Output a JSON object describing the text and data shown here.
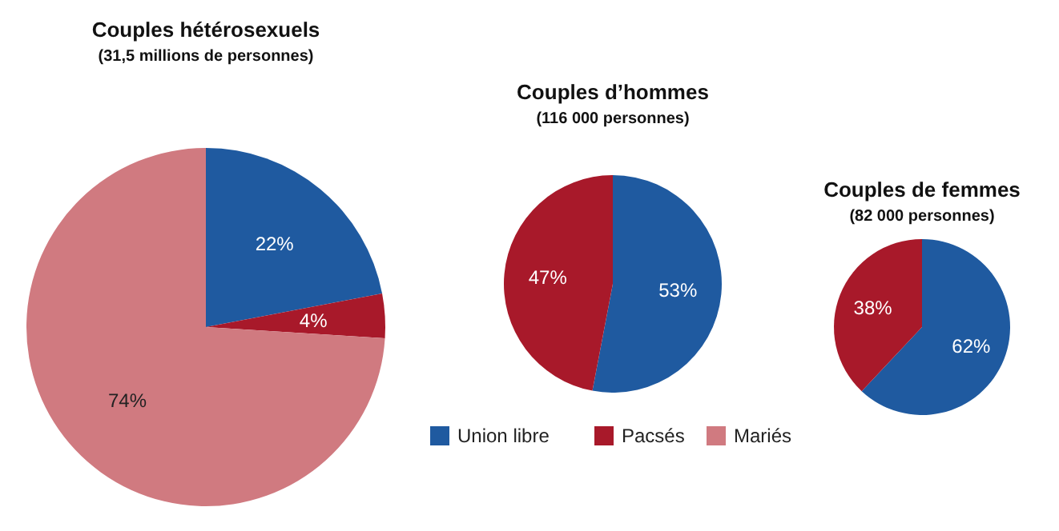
{
  "chart_data": [
    {
      "type": "pie",
      "title": "Couples hétérosexuels",
      "subtitle": "(31,5 millions de personnes)",
      "categories": [
        "Union libre",
        "Pacsés",
        "Mariés"
      ],
      "values": [
        22,
        4,
        74
      ],
      "value_labels": [
        "22%",
        "4%",
        "74%"
      ],
      "colors": [
        "#1f5aa0",
        "#a8192a",
        "#d07a80"
      ],
      "legend": "bottom"
    },
    {
      "type": "pie",
      "title": "Couples d’hommes",
      "subtitle": "(116 000 personnes)",
      "categories": [
        null,
        null
      ],
      "values": [
        53,
        47
      ],
      "value_labels": [
        "53%",
        "47%"
      ],
      "colors": [
        "#1f5aa0",
        "#a8192a"
      ]
    },
    {
      "type": "pie",
      "title": "Couples de femmes",
      "subtitle": "(82 000 personnes)",
      "categories": [
        null,
        null
      ],
      "values": [
        62,
        38
      ],
      "value_labels": [
        "62%",
        "38%"
      ],
      "colors": [
        "#1f5aa0",
        "#a8192a"
      ]
    }
  ]
}
